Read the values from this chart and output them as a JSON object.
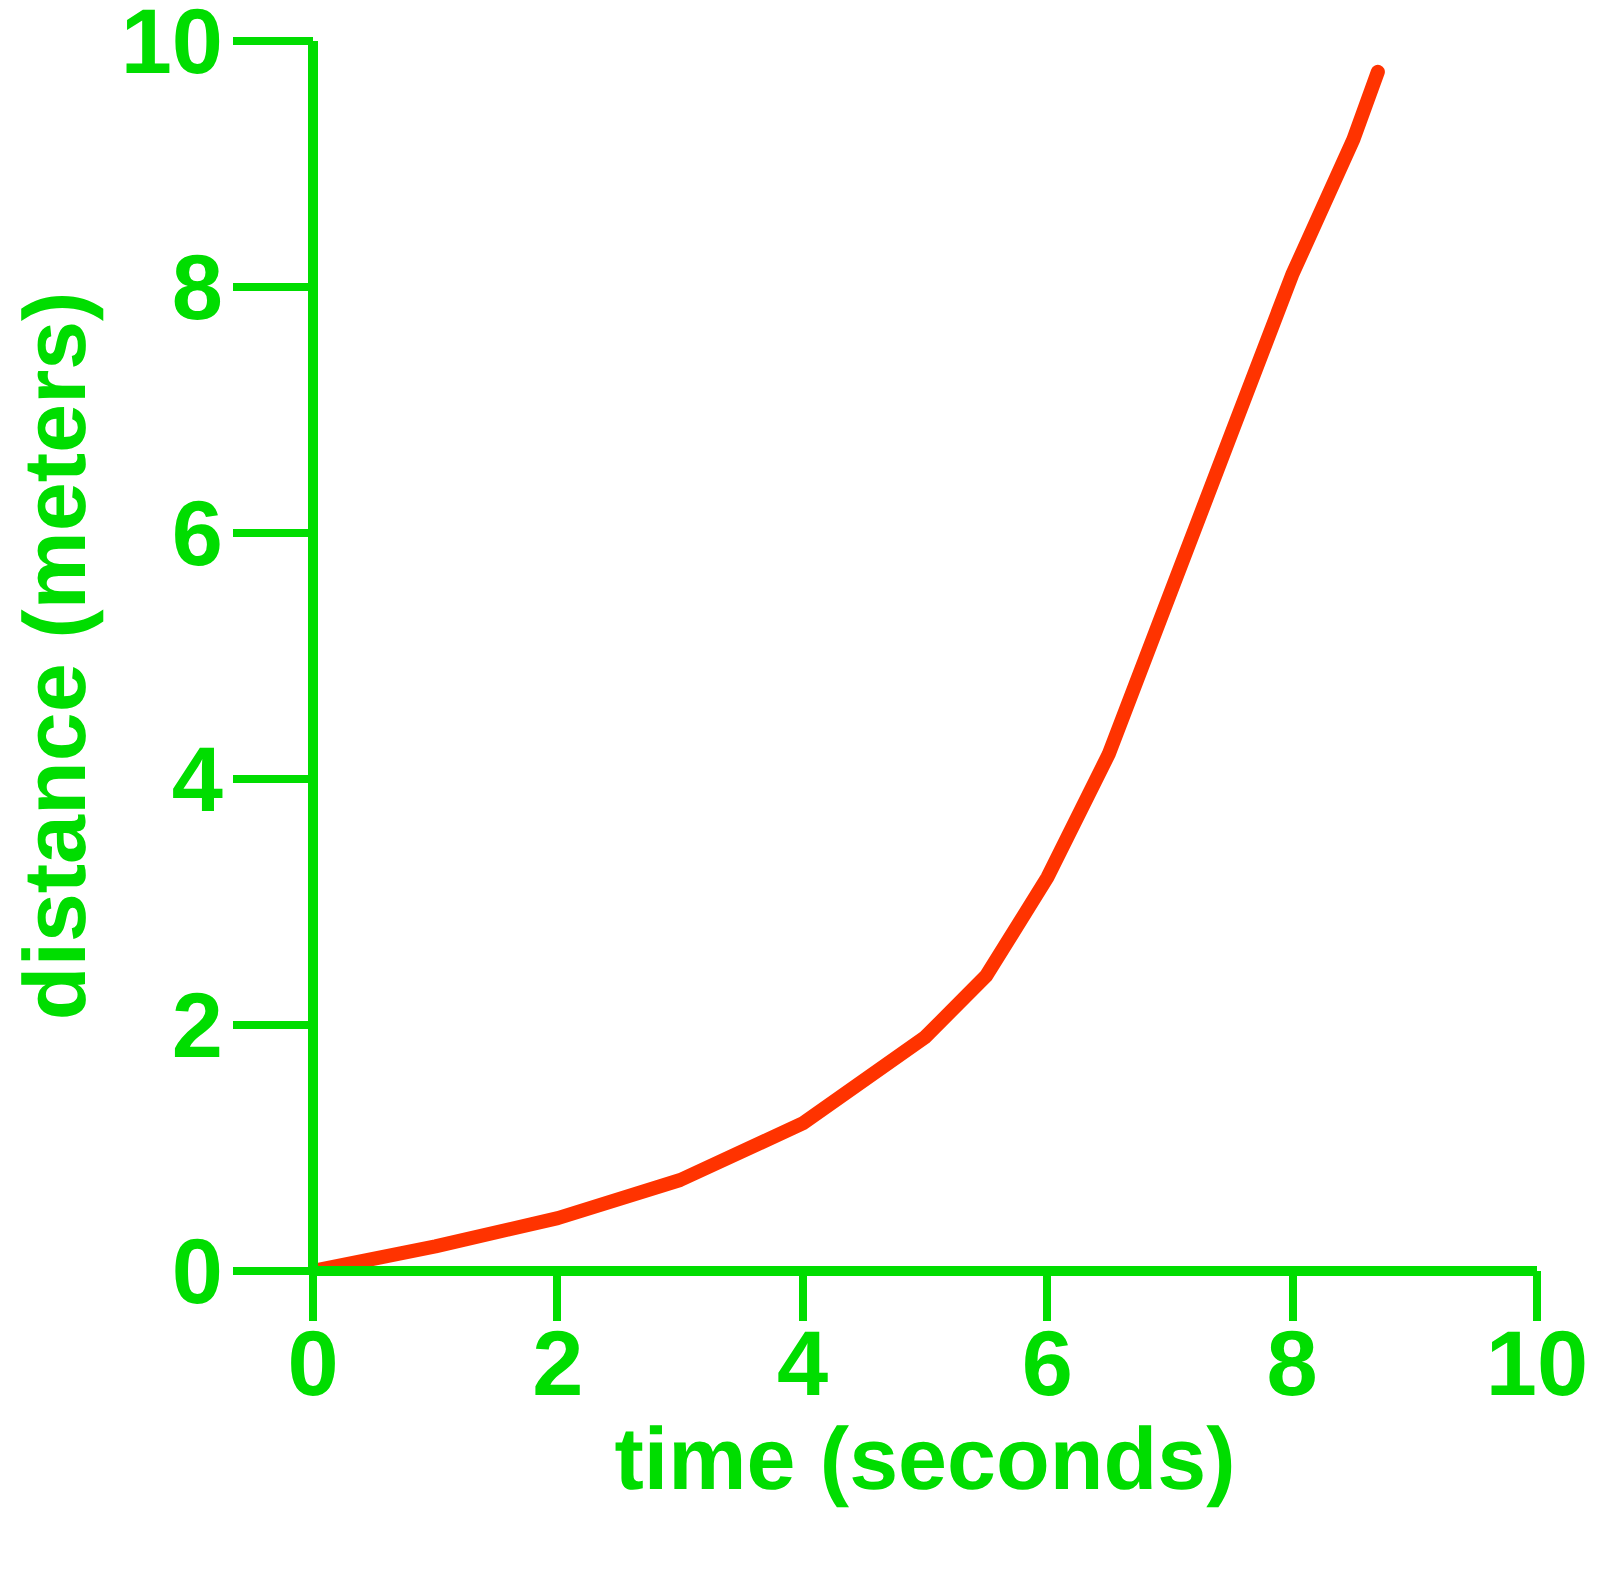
{
  "chart_data": {
    "type": "line",
    "xlabel": "time (seconds)",
    "ylabel": "distance (meters)",
    "xlim": [
      0,
      10
    ],
    "ylim": [
      0,
      10
    ],
    "xticks": [
      0,
      2,
      4,
      6,
      8,
      10
    ],
    "yticks": [
      0,
      2,
      4,
      6,
      8,
      10
    ],
    "grid": false,
    "marker": "none",
    "line_style": "solid",
    "series": [
      {
        "color": "#ff3300",
        "x": [
          0,
          1,
          2,
          3,
          4,
          5,
          5.5,
          6,
          6.5,
          7,
          7.5,
          8,
          8.5,
          8.7
        ],
        "values": [
          0,
          0.2,
          0.43,
          0.74,
          1.2,
          1.9,
          2.4,
          3.2,
          4.2,
          5.5,
          6.8,
          8.1,
          9.2,
          9.75
        ]
      }
    ]
  }
}
